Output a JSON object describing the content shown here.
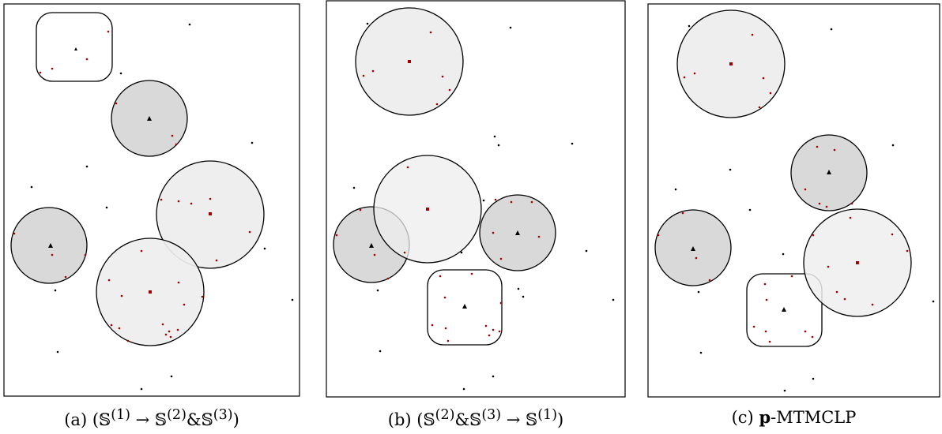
{
  "colors": {
    "frame": "#000000",
    "light_fill": "#eeeeee",
    "dark_fill": "#d9d9d9",
    "covered_point": "#a00000",
    "uncovered_point": "#000000",
    "facility_marker": "#000000",
    "center_marker": "#a00000"
  },
  "panels": [
    {
      "id": "a",
      "caption": {
        "label": "(a)",
        "expr_html": "(&#x1D54A;<sup>(1)</sup> &#8594; &#x1D54A;<sup>(2)</sup>&amp;&#x1D54A;<sup>(3)</sup>)"
      }
    },
    {
      "id": "b",
      "caption": {
        "label": "(b)",
        "expr_html": "(&#x1D54A;<sup>(2)</sup>&amp;&#x1D54A;<sup>(3)</sup> &#8594; &#x1D54A;<sup>(1)</sup>)"
      }
    },
    {
      "id": "c",
      "caption": {
        "label": "(c)",
        "bold": "p",
        "rest": "-MTMCLP"
      }
    }
  ],
  "icons": {
    "facility": "triangle-icon",
    "light_center": "square-icon"
  }
}
